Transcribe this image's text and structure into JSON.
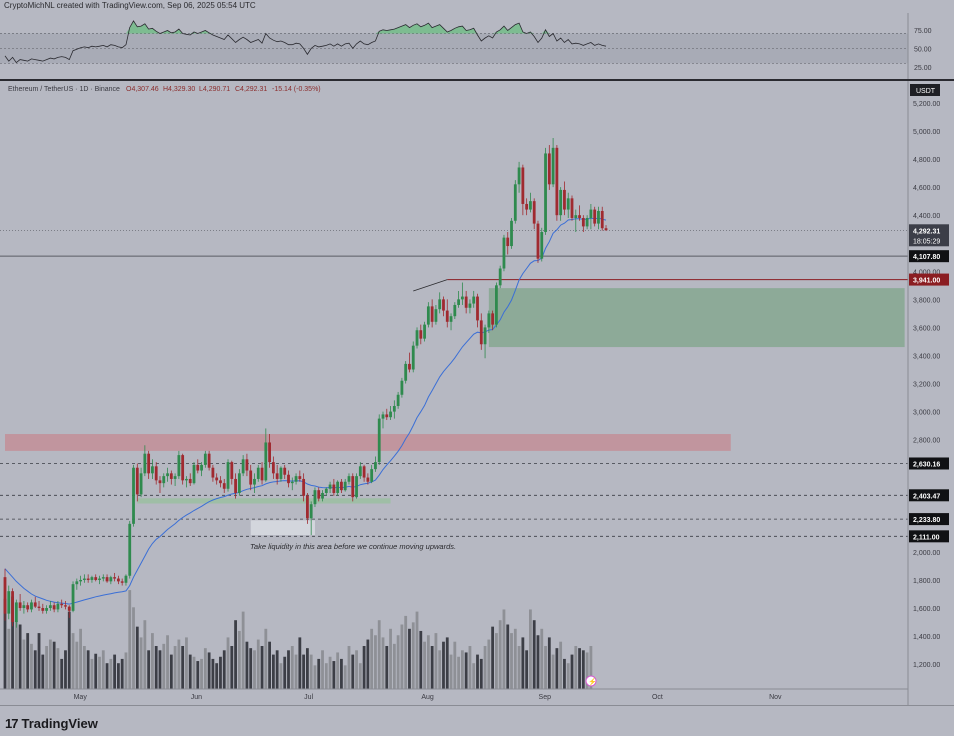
{
  "header": {
    "credit": "CryptoMichNL created with TradingView.com, Sep 06, 2025 05:54 UTC"
  },
  "legend": {
    "symbol": "Ethereum / TetherUS · 1D · Binance",
    "open": "O4,307.46",
    "high": "H4,329.30",
    "low": "L4,290.71",
    "close": "C4,292.31",
    "change": "-15.14 (-0.35%)"
  },
  "currency_badge": "USDT",
  "price_axis": {
    "ticks": [
      "5,200.00",
      "5,000.00",
      "4,800.00",
      "4,600.00",
      "4,400.00",
      "4,000.00",
      "3,800.00",
      "3,600.00",
      "3,400.00",
      "3,200.00",
      "3,000.00",
      "2,800.00",
      "2,000.00",
      "1,800.00",
      "1,600.00",
      "1,400.00",
      "1,200.00"
    ],
    "tick_values": [
      5200,
      5000,
      4800,
      4600,
      4400,
      4000,
      3800,
      3600,
      3400,
      3200,
      3000,
      2800,
      2000,
      1800,
      1600,
      1400,
      1200
    ],
    "current_price": "4,292.31",
    "countdown": "18:05:29",
    "level_labels": [
      "4,107.80",
      "3,941.00",
      "2,630.16",
      "2,403.47",
      "2,233.80",
      "2,111.00"
    ],
    "level_values": [
      4107.8,
      3941,
      2630.16,
      2403.47,
      2233.8,
      2111
    ]
  },
  "rsi_axis": {
    "ticks": [
      "75.00",
      "50.00",
      "25.00"
    ],
    "tick_values": [
      75,
      50,
      25
    ]
  },
  "time_axis": {
    "months": [
      "May",
      "Jun",
      "Jul",
      "Aug",
      "Sep",
      "Oct",
      "Nov"
    ],
    "month_day_index": [
      20,
      51,
      81,
      112,
      143,
      173,
      204
    ]
  },
  "annotation": {
    "text": "Take liquidity in this area before we continue moving upwards."
  },
  "zones": [
    {
      "kind": "resistance",
      "color": "#c48a92",
      "price_top": 2840,
      "price_bottom": 2720,
      "day_start": 0,
      "day_end": 192
    },
    {
      "kind": "demand",
      "color": "#7fa58a",
      "price_top": 3880,
      "price_bottom": 3460,
      "day_start": 128,
      "day_end": 238
    },
    {
      "kind": "support",
      "color": "#97c09c",
      "price_top": 2382,
      "price_bottom": 2345,
      "day_start": 35,
      "day_end": 102
    },
    {
      "kind": "liquidity",
      "color": "#d8dae2",
      "price_top": 2225,
      "price_bottom": 2120,
      "day_start": 65,
      "day_end": 82
    }
  ],
  "footer": {
    "brand": "TradingView"
  },
  "chart_data": {
    "type": "candlestick",
    "title": "Ethereum / TetherUS · 1D · Binance",
    "xlabel": "",
    "ylabel": "USDT",
    "ylim": [
      1060,
      5350
    ],
    "grid": false,
    "volume_ylim": [
      0,
      2600
    ],
    "rsi_ylim": [
      12,
      96
    ],
    "candles": [
      [
        1820,
        1880,
        1510,
        1560
      ],
      [
        1560,
        1760,
        1520,
        1720
      ],
      [
        1720,
        1740,
        1470,
        1500
      ],
      [
        1500,
        1660,
        1460,
        1640
      ],
      [
        1640,
        1700,
        1580,
        1600
      ],
      [
        1600,
        1650,
        1560,
        1620
      ],
      [
        1620,
        1640,
        1570,
        1590
      ],
      [
        1590,
        1660,
        1570,
        1640
      ],
      [
        1640,
        1680,
        1600,
        1610
      ],
      [
        1610,
        1650,
        1580,
        1600
      ],
      [
        1600,
        1630,
        1560,
        1580
      ],
      [
        1580,
        1620,
        1560,
        1600
      ],
      [
        1600,
        1650,
        1580,
        1620
      ],
      [
        1620,
        1640,
        1570,
        1590
      ],
      [
        1590,
        1650,
        1570,
        1630
      ],
      [
        1630,
        1660,
        1600,
        1620
      ],
      [
        1620,
        1650,
        1590,
        1610
      ],
      [
        1610,
        1620,
        1530,
        1580
      ],
      [
        1580,
        1790,
        1570,
        1770
      ],
      [
        1770,
        1810,
        1730,
        1790
      ],
      [
        1790,
        1830,
        1760,
        1800
      ],
      [
        1800,
        1840,
        1780,
        1810
      ],
      [
        1810,
        1840,
        1780,
        1800
      ],
      [
        1800,
        1830,
        1780,
        1820
      ],
      [
        1820,
        1840,
        1790,
        1800
      ],
      [
        1800,
        1830,
        1770,
        1810
      ],
      [
        1810,
        1840,
        1790,
        1820
      ],
      [
        1820,
        1840,
        1780,
        1790
      ],
      [
        1790,
        1830,
        1770,
        1820
      ],
      [
        1820,
        1850,
        1790,
        1810
      ],
      [
        1810,
        1830,
        1770,
        1790
      ],
      [
        1790,
        1810,
        1760,
        1780
      ],
      [
        1780,
        1840,
        1760,
        1830
      ],
      [
        1830,
        2220,
        1810,
        2200
      ],
      [
        2200,
        2620,
        2180,
        2600
      ],
      [
        2600,
        2630,
        2360,
        2410
      ],
      [
        2410,
        2600,
        2390,
        2560
      ],
      [
        2560,
        2760,
        2540,
        2700
      ],
      [
        2700,
        2720,
        2520,
        2560
      ],
      [
        2560,
        2660,
        2520,
        2610
      ],
      [
        2610,
        2640,
        2480,
        2510
      ],
      [
        2510,
        2540,
        2420,
        2490
      ],
      [
        2490,
        2560,
        2460,
        2540
      ],
      [
        2540,
        2600,
        2500,
        2560
      ],
      [
        2560,
        2580,
        2480,
        2520
      ],
      [
        2520,
        2560,
        2470,
        2540
      ],
      [
        2540,
        2720,
        2520,
        2690
      ],
      [
        2690,
        2700,
        2480,
        2510
      ],
      [
        2510,
        2540,
        2460,
        2520
      ],
      [
        2520,
        2560,
        2470,
        2490
      ],
      [
        2490,
        2640,
        2480,
        2620
      ],
      [
        2620,
        2660,
        2560,
        2580
      ],
      [
        2580,
        2640,
        2540,
        2620
      ],
      [
        2620,
        2720,
        2600,
        2700
      ],
      [
        2700,
        2720,
        2580,
        2600
      ],
      [
        2600,
        2620,
        2500,
        2530
      ],
      [
        2530,
        2560,
        2480,
        2510
      ],
      [
        2510,
        2540,
        2460,
        2490
      ],
      [
        2490,
        2520,
        2420,
        2450
      ],
      [
        2450,
        2660,
        2430,
        2640
      ],
      [
        2640,
        2650,
        2480,
        2520
      ],
      [
        2520,
        2560,
        2380,
        2420
      ],
      [
        2420,
        2590,
        2400,
        2560
      ],
      [
        2560,
        2690,
        2540,
        2660
      ],
      [
        2660,
        2700,
        2540,
        2580
      ],
      [
        2580,
        2620,
        2440,
        2480
      ],
      [
        2480,
        2560,
        2420,
        2520
      ],
      [
        2520,
        2620,
        2500,
        2600
      ],
      [
        2600,
        2640,
        2480,
        2510
      ],
      [
        2510,
        2880,
        2500,
        2780
      ],
      [
        2780,
        2840,
        2600,
        2640
      ],
      [
        2640,
        2680,
        2520,
        2560
      ],
      [
        2560,
        2620,
        2480,
        2520
      ],
      [
        2520,
        2610,
        2500,
        2600
      ],
      [
        2600,
        2620,
        2520,
        2550
      ],
      [
        2550,
        2580,
        2460,
        2490
      ],
      [
        2490,
        2530,
        2440,
        2500
      ],
      [
        2500,
        2560,
        2480,
        2540
      ],
      [
        2540,
        2580,
        2500,
        2520
      ],
      [
        2520,
        2560,
        2360,
        2400
      ],
      [
        2400,
        2420,
        2200,
        2240
      ],
      [
        2240,
        2360,
        2120,
        2340
      ],
      [
        2340,
        2460,
        2320,
        2440
      ],
      [
        2440,
        2460,
        2360,
        2380
      ],
      [
        2380,
        2440,
        2360,
        2420
      ],
      [
        2420,
        2460,
        2400,
        2450
      ],
      [
        2450,
        2500,
        2420,
        2480
      ],
      [
        2480,
        2520,
        2400,
        2420
      ],
      [
        2420,
        2510,
        2400,
        2500
      ],
      [
        2500,
        2520,
        2420,
        2440
      ],
      [
        2440,
        2520,
        2430,
        2500
      ],
      [
        2500,
        2560,
        2480,
        2540
      ],
      [
        2540,
        2560,
        2360,
        2390
      ],
      [
        2390,
        2560,
        2380,
        2540
      ],
      [
        2540,
        2640,
        2520,
        2610
      ],
      [
        2610,
        2620,
        2500,
        2530
      ],
      [
        2530,
        2560,
        2480,
        2500
      ],
      [
        2500,
        2620,
        2490,
        2590
      ],
      [
        2590,
        2680,
        2570,
        2640
      ],
      [
        2640,
        2980,
        2620,
        2950
      ],
      [
        2950,
        3000,
        2880,
        2980
      ],
      [
        2980,
        3020,
        2940,
        2960
      ],
      [
        2960,
        3040,
        2940,
        3000
      ],
      [
        3000,
        3080,
        2950,
        3040
      ],
      [
        3040,
        3140,
        3020,
        3120
      ],
      [
        3120,
        3240,
        3100,
        3220
      ],
      [
        3220,
        3360,
        3200,
        3340
      ],
      [
        3340,
        3420,
        3280,
        3300
      ],
      [
        3300,
        3500,
        3280,
        3470
      ],
      [
        3470,
        3600,
        3450,
        3580
      ],
      [
        3580,
        3620,
        3480,
        3520
      ],
      [
        3520,
        3640,
        3500,
        3620
      ],
      [
        3620,
        3780,
        3600,
        3750
      ],
      [
        3750,
        3800,
        3600,
        3640
      ],
      [
        3640,
        3760,
        3620,
        3730
      ],
      [
        3730,
        3850,
        3700,
        3800
      ],
      [
        3800,
        3820,
        3680,
        3720
      ],
      [
        3720,
        3800,
        3600,
        3640
      ],
      [
        3640,
        3700,
        3580,
        3680
      ],
      [
        3680,
        3780,
        3660,
        3760
      ],
      [
        3760,
        3860,
        3740,
        3800
      ],
      [
        3800,
        3920,
        3760,
        3820
      ],
      [
        3820,
        3860,
        3700,
        3740
      ],
      [
        3740,
        3800,
        3700,
        3770
      ],
      [
        3770,
        3860,
        3740,
        3820
      ],
      [
        3820,
        3840,
        3600,
        3650
      ],
      [
        3650,
        3700,
        3440,
        3480
      ],
      [
        3480,
        3620,
        3380,
        3600
      ],
      [
        3600,
        3720,
        3560,
        3700
      ],
      [
        3700,
        3720,
        3580,
        3620
      ],
      [
        3620,
        3920,
        3600,
        3900
      ],
      [
        3900,
        4040,
        3880,
        4020
      ],
      [
        4020,
        4260,
        4000,
        4240
      ],
      [
        4240,
        4280,
        4120,
        4180
      ],
      [
        4180,
        4380,
        4160,
        4360
      ],
      [
        4360,
        4650,
        4340,
        4620
      ],
      [
        4620,
        4780,
        4560,
        4740
      ],
      [
        4740,
        4760,
        4400,
        4480
      ],
      [
        4480,
        4520,
        4400,
        4440
      ],
      [
        4440,
        4560,
        4420,
        4500
      ],
      [
        4500,
        4520,
        4300,
        4340
      ],
      [
        4340,
        4360,
        4060,
        4090
      ],
      [
        4090,
        4310,
        4070,
        4280
      ],
      [
        4280,
        4880,
        4260,
        4840
      ],
      [
        4840,
        4900,
        4580,
        4620
      ],
      [
        4620,
        4950,
        4600,
        4880
      ],
      [
        4880,
        4900,
        4360,
        4400
      ],
      [
        4400,
        4600,
        4360,
        4580
      ],
      [
        4580,
        4640,
        4400,
        4440
      ],
      [
        4440,
        4560,
        4380,
        4520
      ],
      [
        4520,
        4540,
        4360,
        4380
      ],
      [
        4380,
        4440,
        4280,
        4400
      ],
      [
        4400,
        4470,
        4360,
        4380
      ],
      [
        4380,
        4400,
        4280,
        4320
      ],
      [
        4320,
        4400,
        4300,
        4380
      ],
      [
        4380,
        4480,
        4300,
        4440
      ],
      [
        4440,
        4460,
        4320,
        4340
      ],
      [
        4340,
        4460,
        4300,
        4430
      ],
      [
        4430,
        4460,
        4290,
        4307
      ],
      [
        4307,
        4329,
        4290,
        4292
      ]
    ],
    "ema": [
      1880,
      1850,
      1820,
      1790,
      1765,
      1740,
      1720,
      1700,
      1685,
      1675,
      1665,
      1655,
      1648,
      1642,
      1638,
      1635,
      1632,
      1628,
      1634,
      1642,
      1650,
      1658,
      1665,
      1672,
      1680,
      1686,
      1692,
      1697,
      1702,
      1708,
      1712,
      1716,
      1722,
      1760,
      1820,
      1870,
      1920,
      1970,
      2020,
      2060,
      2090,
      2110,
      2135,
      2160,
      2180,
      2200,
      2225,
      2245,
      2262,
      2278,
      2295,
      2310,
      2325,
      2342,
      2358,
      2370,
      2380,
      2388,
      2394,
      2405,
      2413,
      2418,
      2425,
      2436,
      2446,
      2452,
      2458,
      2466,
      2472,
      2485,
      2494,
      2499,
      2502,
      2506,
      2508,
      2506,
      2505,
      2506,
      2507,
      2500,
      2484,
      2474,
      2470,
      2462,
      2458,
      2457,
      2459,
      2457,
      2460,
      2458,
      2461,
      2467,
      2461,
      2467,
      2479,
      2485,
      2489,
      2499,
      2512,
      2547,
      2587,
      2620,
      2650,
      2682,
      2717,
      2758,
      2807,
      2848,
      2900,
      2957,
      2999,
      3044,
      3104,
      3150,
      3198,
      3247,
      3285,
      3317,
      3348,
      3383,
      3422,
      3461,
      3492,
      3522,
      3552,
      3566,
      3561,
      3568,
      3581,
      3585,
      3617,
      3654,
      3709,
      3747,
      3795,
      3864,
      3938,
      3984,
      4020,
      4057,
      4075,
      4077,
      4094,
      4163,
      4211,
      4271,
      4296,
      4329,
      4343,
      4366,
      4369,
      4374,
      4375,
      4370,
      4371,
      4378,
      4374,
      4379,
      4372,
      4365
    ],
    "volume": [
      2100,
      1400,
      2150,
      1600,
      1500,
      1150,
      1300,
      1050,
      900,
      1300,
      800,
      1000,
      1150,
      1100,
      950,
      700,
      900,
      1800,
      1300,
      1100,
      1400,
      1000,
      900,
      700,
      820,
      750,
      900,
      600,
      700,
      800,
      600,
      700,
      850,
      2300,
      1900,
      1450,
      1200,
      1600,
      900,
      1300,
      1000,
      900,
      1050,
      1250,
      800,
      1000,
      1150,
      1000,
      1200,
      800,
      750,
      650,
      700,
      950,
      850,
      700,
      600,
      750,
      900,
      1200,
      1000,
      1600,
      1350,
      1800,
      1100,
      950,
      900,
      1150,
      1000,
      1400,
      1100,
      800,
      900,
      600,
      750,
      900,
      1000,
      800,
      1200,
      800,
      950,
      800,
      550,
      700,
      900,
      600,
      750,
      650,
      850,
      700,
      550,
      1000,
      800,
      900,
      600,
      1000,
      1150,
      1400,
      1250,
      1600,
      1200,
      1000,
      1400,
      1050,
      1250,
      1500,
      1700,
      1400,
      1550,
      1800,
      1350,
      1100,
      1250,
      1000,
      1300,
      900,
      1100,
      1200,
      800,
      1100,
      750,
      900,
      850,
      1000,
      600,
      800,
      700,
      1000,
      1150,
      1450,
      1300,
      1600,
      1850,
      1500,
      1300,
      1400,
      1000,
      1200,
      900,
      1850,
      1600,
      1250,
      1400,
      1000,
      1200,
      800,
      950,
      1100,
      700,
      600,
      800,
      1000,
      950,
      900,
      850,
      1000
    ],
    "rsi": [
      40,
      33,
      38,
      31,
      35,
      34,
      33,
      36,
      35,
      34,
      33,
      35,
      37,
      36,
      38,
      39,
      38,
      35,
      47,
      49,
      51,
      52,
      51,
      53,
      52,
      53,
      54,
      52,
      55,
      54,
      52,
      51,
      55,
      78,
      87,
      79,
      80,
      83,
      76,
      77,
      73,
      70,
      72,
      74,
      71,
      72,
      76,
      70,
      69,
      68,
      72,
      70,
      72,
      74,
      71,
      68,
      66,
      64,
      62,
      68,
      63,
      58,
      62,
      65,
      62,
      58,
      60,
      62,
      57,
      70,
      64,
      61,
      59,
      60,
      58,
      55,
      55,
      57,
      56,
      50,
      42,
      50,
      54,
      52,
      53,
      54,
      56,
      53,
      56,
      53,
      56,
      57,
      50,
      56,
      60,
      56,
      55,
      58,
      60,
      73,
      75,
      74,
      75,
      76,
      78,
      80,
      82,
      78,
      81,
      83,
      79,
      81,
      84,
      78,
      80,
      82,
      77,
      72,
      74,
      77,
      79,
      80,
      74,
      75,
      77,
      68,
      60,
      64,
      67,
      64,
      72,
      75,
      80,
      74,
      78,
      82,
      84,
      72,
      70,
      72,
      66,
      58,
      64,
      75,
      66,
      70,
      60,
      64,
      58,
      62,
      56,
      57,
      56,
      54,
      56,
      58,
      54,
      56,
      54,
      53
    ]
  }
}
